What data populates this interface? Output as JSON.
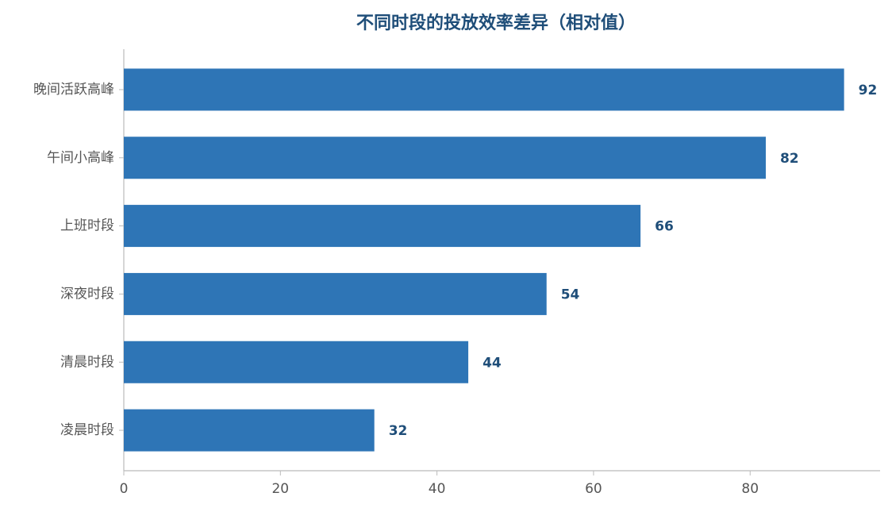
{
  "chart_data": {
    "type": "barh",
    "title": "不同时段的投放效率差异（相对值）",
    "categories": [
      "晚间活跃高峰",
      "午间小高峰",
      "上班时段",
      "深夜时段",
      "清晨时段",
      "凌晨时段"
    ],
    "values": [
      92,
      82,
      66,
      54,
      44,
      32
    ],
    "color": "#2e75b6",
    "xlim": [
      0,
      96.6
    ],
    "xticks": [
      0,
      20,
      40,
      60,
      80
    ]
  }
}
